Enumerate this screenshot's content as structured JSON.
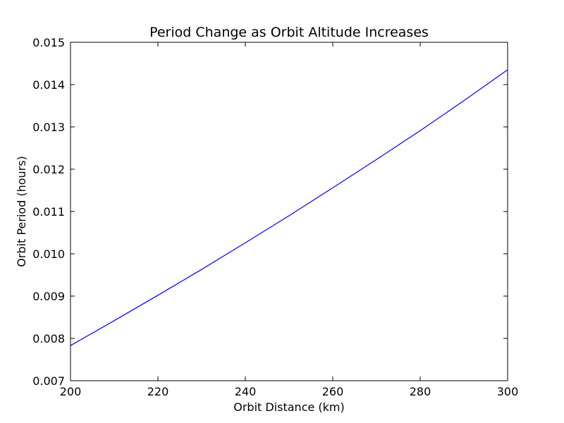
{
  "chart_data": {
    "type": "line",
    "title": "Period Change as Orbit Altitude Increases",
    "xlabel": "Orbit Distance (km)",
    "ylabel": "Orbit Period (hours)",
    "xlim": [
      200,
      300
    ],
    "ylim": [
      0.007,
      0.015
    ],
    "x_ticks": [
      200,
      220,
      240,
      260,
      280,
      300
    ],
    "x_tick_labels": [
      "200",
      "220",
      "240",
      "260",
      "280",
      "300"
    ],
    "y_ticks": [
      0.007,
      0.008,
      0.009,
      0.01,
      0.011,
      0.012,
      0.013,
      0.014,
      0.015
    ],
    "y_tick_labels": [
      "0.007",
      "0.008",
      "0.009",
      "0.010",
      "0.011",
      "0.012",
      "0.013",
      "0.014",
      "0.015"
    ],
    "grid": false,
    "series": [
      {
        "color": "#0000ff",
        "x": [
          200,
          210,
          220,
          230,
          240,
          250,
          260,
          270,
          280,
          290,
          300
        ],
        "y": [
          0.00783,
          0.00842,
          0.00902,
          0.00963,
          0.01026,
          0.0109,
          0.01156,
          0.01223,
          0.01291,
          0.01362,
          0.01435
        ]
      }
    ]
  }
}
